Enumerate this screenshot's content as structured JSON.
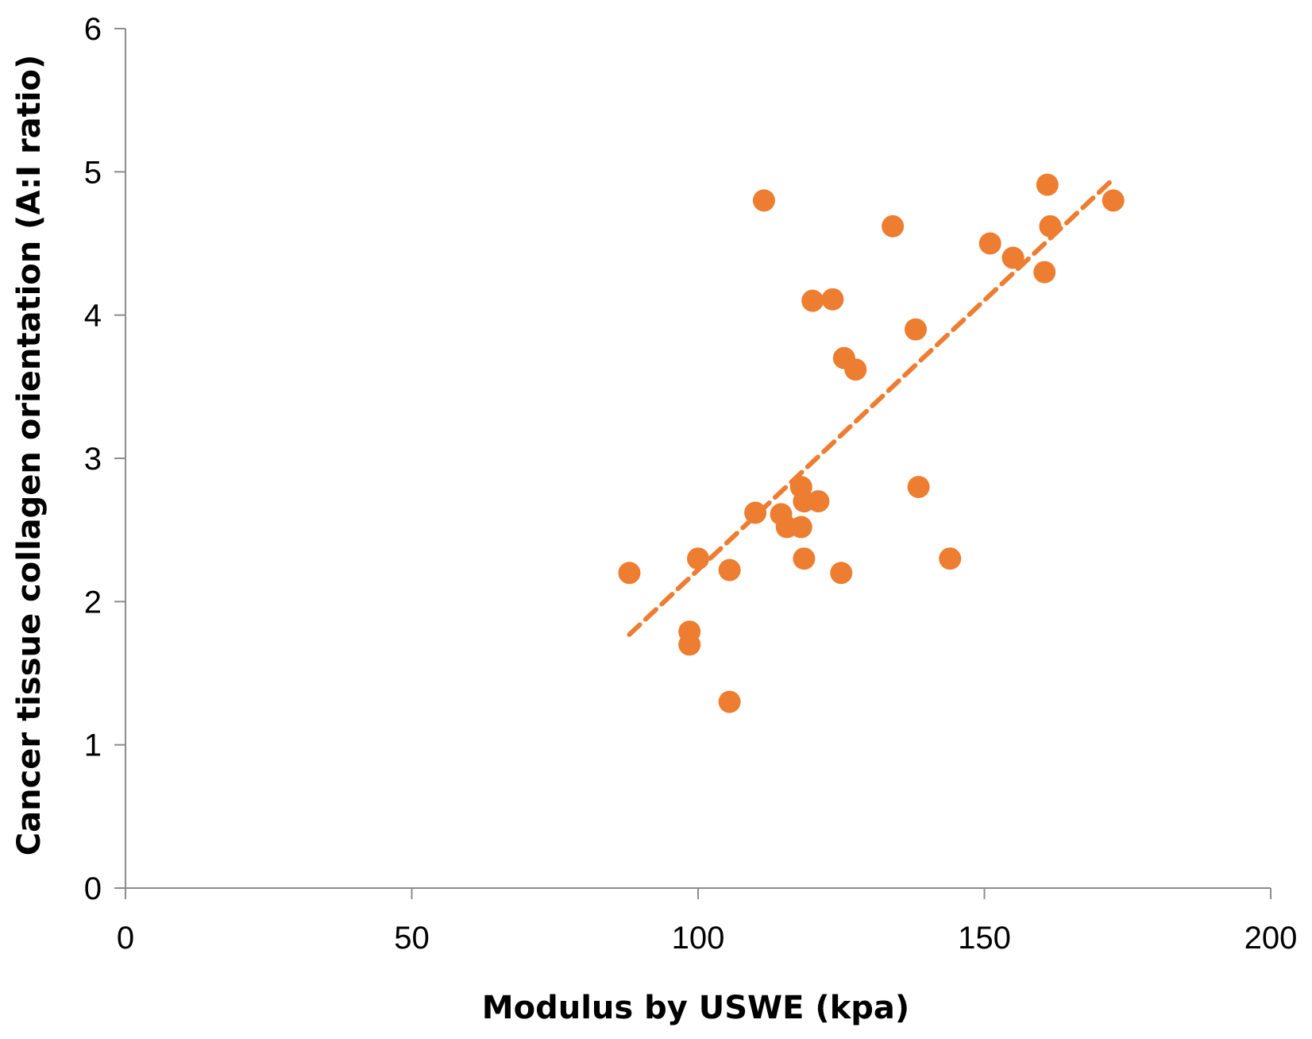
{
  "chart_data": {
    "type": "scatter",
    "xlabel": "Modulus by USWE (kpa)",
    "ylabel": "Cancer tissue collagen orientation (A:I ratio)",
    "xlim": [
      0,
      200
    ],
    "ylim": [
      0,
      6
    ],
    "x_ticks": [
      0,
      50,
      100,
      150,
      200
    ],
    "y_ticks": [
      0,
      1,
      2,
      3,
      4,
      5,
      6
    ],
    "x_tick_labels": [
      "0",
      "50",
      "100",
      "150",
      "200"
    ],
    "y_tick_labels": [
      "0",
      "1",
      "2",
      "3",
      "4",
      "5",
      "6"
    ],
    "grid": false,
    "marker_color": "#ED7D31",
    "trendline": {
      "type": "linear",
      "style": "dashed",
      "color": "#ED7D31",
      "x": [
        88,
        172.5
      ],
      "y": [
        1.77,
        4.95
      ]
    },
    "points": [
      {
        "x": 88,
        "y": 2.2
      },
      {
        "x": 98.5,
        "y": 1.79
      },
      {
        "x": 98.5,
        "y": 1.7
      },
      {
        "x": 100,
        "y": 2.3
      },
      {
        "x": 105.5,
        "y": 2.22
      },
      {
        "x": 105.5,
        "y": 1.3
      },
      {
        "x": 110,
        "y": 2.62
      },
      {
        "x": 111.5,
        "y": 4.8
      },
      {
        "x": 114.5,
        "y": 2.61
      },
      {
        "x": 115.5,
        "y": 2.52
      },
      {
        "x": 118,
        "y": 2.8
      },
      {
        "x": 118,
        "y": 2.52
      },
      {
        "x": 118.5,
        "y": 2.7
      },
      {
        "x": 118.5,
        "y": 2.3
      },
      {
        "x": 120,
        "y": 4.1
      },
      {
        "x": 121,
        "y": 2.7
      },
      {
        "x": 123.5,
        "y": 4.11
      },
      {
        "x": 125,
        "y": 2.2
      },
      {
        "x": 125.5,
        "y": 3.7
      },
      {
        "x": 127.5,
        "y": 3.62
      },
      {
        "x": 134,
        "y": 4.62
      },
      {
        "x": 138,
        "y": 3.9
      },
      {
        "x": 138.5,
        "y": 2.8
      },
      {
        "x": 144,
        "y": 2.3
      },
      {
        "x": 151,
        "y": 4.5
      },
      {
        "x": 155,
        "y": 4.4
      },
      {
        "x": 160.5,
        "y": 4.3
      },
      {
        "x": 161,
        "y": 4.91
      },
      {
        "x": 161.5,
        "y": 4.62
      },
      {
        "x": 172.5,
        "y": 4.8
      }
    ]
  }
}
